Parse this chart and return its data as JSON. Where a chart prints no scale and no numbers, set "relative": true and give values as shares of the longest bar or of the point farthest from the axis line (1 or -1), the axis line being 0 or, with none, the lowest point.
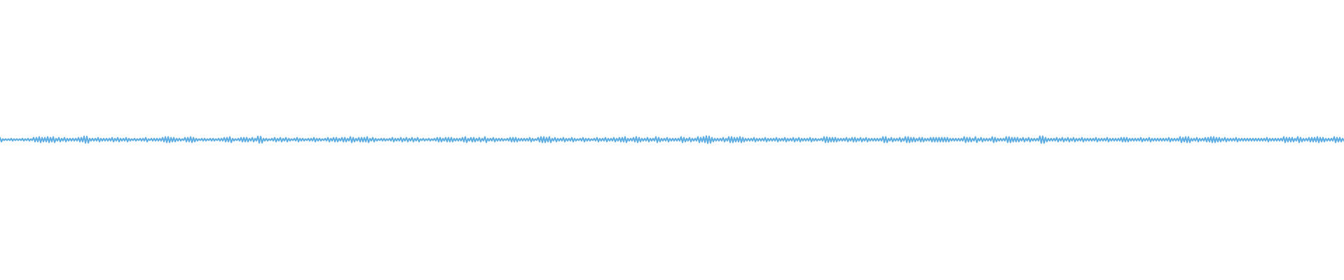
{
  "chart_data": {
    "type": "line",
    "relative": true,
    "color": "#5dade2",
    "categories": [
      null,
      null,
      null,
      null,
      null,
      null,
      null,
      null,
      null,
      null,
      null,
      null,
      null,
      null,
      null,
      null,
      null,
      null,
      null,
      null,
      null,
      null,
      null,
      null,
      null,
      null,
      null,
      null,
      null,
      null,
      null,
      null,
      null,
      null,
      null,
      null,
      null,
      null,
      null,
      null,
      null,
      null,
      null,
      null,
      null,
      null,
      null,
      null,
      null,
      null,
      null,
      null,
      null,
      null,
      null,
      null,
      null,
      null,
      null,
      null,
      null,
      null,
      null,
      null,
      null,
      null,
      null,
      null,
      null,
      null,
      null,
      null,
      null,
      null,
      null,
      null,
      null,
      null,
      null,
      null,
      null,
      null,
      null,
      null,
      null,
      null,
      null,
      null,
      null,
      null,
      null,
      null,
      null,
      null,
      null,
      null,
      null,
      null,
      null,
      null,
      null,
      null,
      null,
      null,
      null,
      null,
      null,
      null,
      null,
      null,
      null,
      null,
      null,
      null,
      null,
      null,
      null,
      null,
      null,
      null,
      null,
      null,
      null,
      null,
      null,
      null,
      null,
      null,
      null,
      null,
      null,
      null,
      null,
      null,
      null,
      null,
      null,
      null,
      null,
      null,
      null,
      null,
      null,
      null,
      null,
      null,
      null,
      null,
      null,
      null,
      null,
      null,
      null,
      null,
      null,
      null,
      null,
      null,
      null,
      null,
      null,
      null,
      null,
      null,
      null,
      null,
      null,
      null,
      null,
      null,
      null,
      null,
      null,
      null,
      null,
      null,
      null,
      null,
      null,
      null,
      null,
      null,
      null,
      null,
      null,
      null,
      null,
      null,
      null,
      null,
      null,
      null,
      null,
      null,
      null,
      null,
      null,
      null,
      null,
      null,
      null,
      null,
      null,
      null,
      null,
      null,
      null,
      null,
      null,
      null,
      null,
      null,
      null,
      null,
      null,
      null,
      null,
      null,
      null,
      null,
      null,
      null,
      null,
      null,
      null,
      null,
      null,
      null,
      null,
      null,
      null,
      null,
      null,
      null,
      null,
      null,
      null,
      null,
      null,
      null,
      null,
      null,
      null,
      null,
      null,
      null,
      null,
      null,
      null,
      null,
      null,
      null,
      null,
      null,
      null,
      null,
      null,
      null,
      null,
      null,
      null,
      null,
      null,
      null,
      null,
      null,
      null,
      null,
      null,
      null,
      null,
      null,
      null,
      null,
      null,
      null,
      null,
      null,
      null,
      null,
      null,
      null,
      null,
      null,
      null,
      null,
      null,
      null,
      null,
      null,
      null,
      null,
      null,
      null,
      null,
      null,
      null,
      null,
      null,
      null,
      null,
      null,
      null,
      null,
      null,
      null,
      null,
      null,
      null,
      null,
      null,
      null,
      null,
      null,
      null,
      null,
      null,
      null,
      null,
      null,
      null,
      null,
      null,
      null,
      null,
      null,
      null,
      null,
      null,
      null,
      null,
      null,
      null,
      null,
      null,
      null,
      null,
      null,
      null,
      null,
      null,
      null,
      null,
      null,
      null,
      null,
      null,
      null,
      null,
      null,
      null,
      null,
      null,
      null,
      null,
      null,
      null,
      null,
      null,
      null,
      null,
      null,
      null,
      null,
      null,
      null,
      null,
      null,
      null,
      null,
      null,
      null,
      null,
      null,
      null,
      null,
      null,
      null,
      null,
      null,
      null,
      null,
      null,
      null,
      null,
      null,
      null,
      null,
      null,
      null,
      null,
      null,
      null,
      null,
      null,
      null,
      null,
      null,
      null,
      null,
      null,
      null,
      null,
      null,
      null,
      null,
      null,
      null,
      null,
      null,
      null,
      null,
      null,
      null,
      null,
      null,
      null,
      null,
      null,
      null,
      null,
      null,
      null,
      null,
      null,
      null,
      null,
      null,
      null,
      null,
      null,
      null,
      null,
      null,
      null,
      null,
      null,
      null,
      null,
      null,
      null,
      null,
      null,
      null,
      null,
      null,
      null,
      null,
      null,
      null,
      null,
      null,
      null,
      null,
      null,
      null,
      null,
      null,
      null,
      null,
      null,
      null,
      null,
      null,
      null,
      null,
      null,
      null,
      null,
      null,
      null,
      null,
      null,
      null,
      null,
      null,
      null,
      null,
      null,
      null,
      null,
      null,
      null,
      null,
      null,
      null,
      null,
      null,
      null,
      null,
      null,
      null,
      null,
      null,
      null,
      null,
      null,
      null,
      null,
      null,
      null,
      null,
      null,
      null,
      null,
      null,
      null,
      null,
      null,
      null,
      null,
      null,
      null,
      null,
      null,
      null,
      null,
      null,
      null,
      null,
      null,
      null,
      null,
      null,
      null,
      null,
      null,
      null,
      null,
      null,
      null,
      null,
      null,
      null,
      null,
      null,
      null,
      null,
      null,
      null,
      null,
      null,
      null,
      null,
      null,
      null,
      null,
      null,
      null,
      null,
      null,
      null,
      null,
      null,
      null,
      null,
      null,
      null,
      null,
      null,
      null,
      null,
      null,
      null,
      null,
      null,
      null,
      null,
      null,
      null,
      null,
      null,
      null,
      null,
      null,
      null,
      null,
      null,
      null,
      null,
      null,
      null,
      null,
      null,
      null,
      null,
      null,
      null,
      null,
      null,
      null,
      null,
      null,
      null,
      null,
      null,
      null,
      null,
      null,
      null,
      null,
      null,
      null,
      null,
      null,
      null,
      null,
      null,
      null,
      null,
      null,
      null,
      null,
      null,
      null,
      null,
      null,
      null,
      null,
      null,
      null,
      null,
      null,
      null,
      null,
      null,
      null,
      null,
      null,
      null,
      null,
      null,
      null,
      null,
      null,
      null,
      null,
      null,
      null,
      null,
      null,
      null,
      null,
      null,
      null,
      null,
      null,
      null,
      null,
      null,
      null,
      null,
      null,
      null,
      null,
      null,
      null,
      null,
      null,
      null,
      null,
      null,
      null,
      null,
      null,
      null,
      null,
      null,
      null,
      null,
      null,
      null,
      null,
      null,
      null,
      null,
      null,
      null,
      null,
      null,
      null,
      null,
      null,
      null,
      null,
      null,
      null,
      null,
      null,
      null,
      null,
      null,
      null,
      null,
      null,
      null,
      null,
      null,
      null,
      null,
      null,
      null,
      null,
      null,
      null,
      null,
      null,
      null,
      null,
      null,
      null,
      null,
      null,
      null,
      null,
      null,
      null,
      null,
      null,
      null,
      null,
      null,
      null,
      null,
      null,
      null,
      null,
      null,
      null,
      null,
      null,
      null,
      null,
      null,
      null,
      null,
      null,
      null,
      null,
      null,
      null,
      null,
      null,
      null,
      null,
      null,
      null,
      null,
      null,
      null,
      null,
      null,
      null,
      null,
      null,
      null,
      null,
      null,
      null,
      null,
      null,
      null,
      null,
      null,
      null,
      null,
      null,
      null,
      null,
      null,
      null,
      null,
      null,
      null,
      null,
      null,
      null,
      null,
      null,
      null,
      null,
      null,
      null,
      null,
      null,
      null,
      null,
      null,
      null,
      null,
      null,
      null,
      null,
      null,
      null,
      null,
      null,
      null,
      null,
      null,
      null,
      null,
      null,
      null,
      null,
      null,
      null,
      null,
      null,
      null,
      null,
      null,
      null,
      null,
      null,
      null,
      null,
      null,
      null,
      null,
      null,
      null,
      null,
      null,
      null,
      null,
      null,
      null,
      null,
      null,
      null,
      null,
      null,
      null,
      null,
      null,
      null,
      null,
      null,
      null,
      null,
      null,
      null,
      null,
      null,
      null,
      null,
      null,
      null,
      null,
      null,
      null,
      null,
      null,
      null,
      null,
      null,
      null,
      null,
      null,
      null,
      null,
      null,
      null,
      null,
      null,
      null,
      null,
      null,
      null,
      null,
      null,
      null,
      null,
      null,
      null,
      null,
      null,
      null,
      null,
      null,
      null,
      null,
      null,
      null,
      null,
      null,
      null,
      null,
      null,
      null,
      null,
      null,
      null,
      null,
      null,
      null,
      null,
      null,
      null,
      null,
      null,
      null,
      null,
      null,
      null,
      null,
      null,
      null,
      null,
      null,
      null,
      null,
      null,
      null,
      null,
      null,
      null,
      null,
      null,
      null,
      null,
      null,
      null,
      null,
      null,
      null,
      null,
      null,
      null,
      null,
      null,
      null,
      null,
      null,
      null,
      null,
      null,
      null,
      null,
      null,
      null,
      null,
      null,
      null,
      null,
      null,
      null,
      null,
      null,
      null,
      null,
      null,
      null,
      null,
      null,
      null,
      null,
      null,
      null
    ],
    "values": [
      0.78,
      0.22,
      0.6,
      0.4,
      0.6,
      0.4,
      0.6,
      0.4,
      0.66,
      0.34,
      0.6,
      0.4,
      0.6,
      0.4,
      0.6,
      0.4,
      0.66,
      0.34,
      0.6,
      0.4,
      0.66,
      0.34,
      0.6,
      0.4,
      0.78,
      0.22,
      0.78,
      0.22,
      0.88,
      0.12,
      0.78,
      0.22,
      0.78,
      0.22,
      0.88,
      0.12,
      0.78,
      0.22,
      0.88,
      0.12,
      0.66,
      0.34,
      0.78,
      0.22,
      0.66,
      0.34,
      0.78,
      0.22,
      0.66,
      0.34,
      0.66,
      0.34,
      0.66,
      0.34,
      0.66,
      0.34,
      0.78,
      0.22,
      0.78,
      0.22,
      0.96,
      0.04,
      0.94,
      0.06,
      0.66,
      0.34,
      0.66,
      0.34,
      0.66,
      0.34,
      0.78,
      0.22,
      0.66,
      0.34,
      0.66,
      0.34,
      0.66,
      0.34,
      0.66,
      0.34,
      0.78,
      0.22,
      0.66,
      0.34,
      0.78,
      0.22,
      0.66,
      0.34,
      0.66,
      0.34,
      0.78,
      0.22,
      0.66,
      0.34,
      0.6,
      0.4,
      0.66,
      0.34,
      0.6,
      0.4,
      0.66,
      0.34,
      0.66,
      0.34,
      0.78,
      0.22,
      0.6,
      0.4,
      0.66,
      0.34,
      0.66,
      0.34,
      0.66,
      0.34,
      0.66,
      0.34,
      0.78,
      0.22,
      0.88,
      0.12,
      0.88,
      0.12,
      0.78,
      0.22,
      0.78,
      0.22,
      0.66,
      0.34,
      0.66,
      0.34,
      0.6,
      0.4,
      0.78,
      0.22,
      0.78,
      0.22,
      0.88,
      0.12,
      0.78,
      0.22,
      0.66,
      0.34,
      0.6,
      0.4,
      0.66,
      0.34,
      0.66,
      0.34,
      0.6,
      0.4,
      0.66,
      0.34,
      0.66,
      0.34,
      0.6,
      0.4,
      0.66,
      0.34,
      0.66,
      0.34,
      0.78,
      0.22,
      0.78,
      0.22,
      0.88,
      0.12,
      0.66,
      0.34,
      0.6,
      0.4,
      0.66,
      0.34,
      0.78,
      0.22,
      0.78,
      0.22,
      0.78,
      0.22,
      0.66,
      0.34,
      0.78,
      0.22,
      0.66,
      0.34,
      0.96,
      0.04,
      0.94,
      0.06,
      0.66,
      0.34,
      0.66,
      0.34,
      0.6,
      0.4,
      0.66,
      0.34,
      0.78,
      0.22,
      0.66,
      0.34,
      0.78,
      0.22,
      0.66,
      0.34,
      0.78,
      0.22,
      0.66,
      0.34,
      0.6,
      0.4,
      0.66,
      0.34,
      0.78,
      0.22,
      0.66,
      0.34,
      0.66,
      0.34,
      0.6,
      0.4,
      0.66,
      0.34,
      0.66,
      0.34,
      0.78,
      0.22,
      0.66,
      0.34,
      0.66,
      0.34,
      0.6,
      0.4,
      0.66,
      0.34,
      0.78,
      0.22,
      0.66,
      0.34,
      0.78,
      0.22,
      0.78,
      0.22,
      0.66,
      0.34,
      0.78,
      0.22,
      0.78,
      0.22,
      0.66,
      0.34,
      0.88,
      0.12,
      0.78,
      0.22,
      0.66,
      0.34,
      0.78,
      0.22,
      0.78,
      0.22,
      0.78,
      0.22,
      0.88,
      0.12,
      0.66,
      0.34,
      0.78,
      0.22,
      0.66,
      0.34,
      0.6,
      0.4,
      0.66,
      0.34,
      0.66,
      0.34,
      0.6,
      0.4,
      0.66,
      0.34,
      0.78,
      0.22,
      0.66,
      0.34,
      0.66,
      0.34,
      0.78,
      0.22,
      0.66,
      0.34,
      0.78,
      0.22,
      0.66,
      0.34,
      0.78,
      0.22,
      0.66,
      0.34,
      0.78,
      0.22,
      0.6,
      0.4,
      0.66,
      0.34,
      0.6,
      0.4,
      0.66,
      0.34,
      0.6,
      0.4,
      0.66,
      0.34,
      0.78,
      0.22,
      0.78,
      0.22,
      0.66,
      0.34,
      0.78,
      0.22,
      0.78,
      0.22,
      0.78,
      0.22,
      0.66,
      0.34,
      0.66,
      0.34,
      0.66,
      0.34,
      0.78,
      0.22,
      0.88,
      0.12,
      0.66,
      0.34,
      0.78,
      0.22,
      0.78,
      0.22,
      0.66,
      0.34,
      0.78,
      0.22,
      0.66,
      0.34,
      0.88,
      0.12,
      0.66,
      0.34,
      0.66,
      0.34,
      0.78,
      0.22,
      0.66,
      0.34,
      0.66,
      0.34,
      0.66,
      0.34,
      0.6,
      0.4,
      0.66,
      0.34,
      0.78,
      0.22,
      0.78,
      0.22,
      0.78,
      0.22,
      0.66,
      0.34,
      0.66,
      0.34,
      0.66,
      0.34,
      0.66,
      0.34,
      0.78,
      0.22,
      0.66,
      0.34,
      0.6,
      0.4,
      0.78,
      0.22,
      0.88,
      0.12,
      0.88,
      0.12,
      0.78,
      0.22,
      0.88,
      0.12,
      0.66,
      0.34,
      0.78,
      0.22,
      0.66,
      0.34,
      0.66,
      0.34,
      0.78,
      0.22,
      0.66,
      0.34,
      0.66,
      0.34,
      0.78,
      0.22,
      0.66,
      0.34,
      0.6,
      0.4,
      0.66,
      0.34,
      0.78,
      0.22,
      0.66,
      0.34,
      0.66,
      0.34,
      0.6,
      0.4,
      0.66,
      0.34,
      0.78,
      0.22,
      0.66,
      0.34,
      0.66,
      0.34,
      0.78,
      0.22,
      0.66,
      0.34,
      0.66,
      0.34,
      0.78,
      0.22,
      0.66,
      0.34,
      0.78,
      0.22,
      0.78,
      0.22,
      0.88,
      0.12,
      0.66,
      0.34,
      0.66,
      0.34,
      0.78,
      0.22,
      0.88,
      0.12,
      0.78,
      0.22,
      0.66,
      0.34,
      0.66,
      0.34,
      0.78,
      0.22,
      0.66,
      0.34,
      0.66,
      0.34,
      0.88,
      0.12,
      0.78,
      0.22,
      0.66,
      0.34,
      0.66,
      0.34,
      0.78,
      0.22,
      0.66,
      0.34,
      0.66,
      0.34,
      0.66,
      0.34,
      0.66,
      0.34,
      0.88,
      0.12,
      0.78,
      0.22,
      0.66,
      0.34,
      0.78,
      0.22,
      0.66,
      0.34,
      0.66,
      0.34,
      0.88,
      0.12,
      0.78,
      0.22,
      0.88,
      0.12,
      1,
      0,
      0.96,
      0.04,
      0.78,
      0.22,
      0.66,
      0.34,
      0.66,
      0.34,
      0.66,
      0.34,
      0.78,
      0.22,
      0.66,
      0.34,
      0.88,
      0.12,
      0.88,
      0.12,
      0.78,
      0.22,
      0.78,
      0.22,
      0.88,
      0.12,
      0.78,
      0.22,
      0.66,
      0.34,
      0.66,
      0.34,
      0.66,
      0.34,
      0.78,
      0.22,
      0.66,
      0.34,
      0.66,
      0.34,
      0.66,
      0.34,
      0.78,
      0.22,
      0.66,
      0.34,
      0.66,
      0.34,
      0.66,
      0.34,
      0.78,
      0.22,
      0.66,
      0.34,
      0.66,
      0.34,
      0.78,
      0.22,
      0.66,
      0.34,
      0.66,
      0.34,
      0.78,
      0.22,
      0.66,
      0.34,
      0.78,
      0.22,
      0.66,
      0.34,
      0.66,
      0.34,
      0.66,
      0.34,
      0.78,
      0.22,
      0.66,
      0.34,
      0.66,
      0.34,
      0.6,
      0.4,
      0.66,
      0.34,
      0.88,
      0.12,
      0.85,
      0.15,
      0.78,
      0.22,
      0.78,
      0.22,
      0.78,
      0.22,
      0.66,
      0.34,
      0.66,
      0.34,
      0.66,
      0.34,
      0.78,
      0.22,
      0.66,
      0.34,
      0.78,
      0.22,
      0.78,
      0.22,
      0.66,
      0.34,
      0.78,
      0.22,
      0.66,
      0.34,
      0.78,
      0.22,
      0.66,
      0.34,
      0.66,
      0.34,
      0.66,
      0.34,
      0.66,
      0.34,
      0.66,
      0.34,
      0.88,
      0.12,
      0.88,
      0.12,
      0.66,
      0.34,
      0.78,
      0.22,
      0.66,
      0.34,
      0.66,
      0.34,
      0.78,
      0.22,
      0.66,
      0.34,
      0.88,
      0.12,
      0.88,
      0.12,
      0.78,
      0.22,
      0.78,
      0.22,
      0.66,
      0.34,
      0.78,
      0.22,
      0.78,
      0.22,
      0.66,
      0.34,
      0.66,
      0.34,
      0.78,
      0.22,
      0.78,
      0.22,
      0.78,
      0.22,
      0.78,
      0.22,
      0.78,
      0.22,
      0.78,
      0.22,
      0.78,
      0.22,
      0.66,
      0.34,
      0.66,
      0.34,
      0.66,
      0.34,
      0.66,
      0.34,
      0.66,
      0.34,
      0.88,
      0.12,
      0.78,
      0.22,
      0.78,
      0.22,
      0.66,
      0.34,
      0.88,
      0.12,
      0.66,
      0.34,
      0.78,
      0.22,
      0.66,
      0.34,
      0.66,
      0.34,
      0.66,
      0.34,
      0.88,
      0.12,
      0.78,
      0.22,
      0.66,
      0.34,
      0.66,
      0.34,
      0.66,
      0.34,
      0.88,
      0.12,
      0.88,
      0.12,
      0.78,
      0.22,
      0.78,
      0.22,
      0.78,
      0.22,
      0.66,
      0.34,
      0.78,
      0.22,
      0.66,
      0.34,
      0.78,
      0.22,
      0.66,
      0.34,
      0.66,
      0.34,
      0.66,
      0.34,
      0.97,
      0.03,
      0.97,
      0.03,
      0.78,
      0.22,
      0.66,
      0.34,
      0.66,
      0.34,
      0.66,
      0.34,
      0.78,
      0.22,
      0.66,
      0.34,
      0.78,
      0.22,
      0.66,
      0.34,
      0.78,
      0.22,
      0.66,
      0.34,
      0.78,
      0.22,
      0.66,
      0.34,
      0.66,
      0.34,
      0.78,
      0.22,
      0.66,
      0.34,
      0.66,
      0.34,
      0.66,
      0.34,
      0.66,
      0.34,
      0.78,
      0.22,
      0.66,
      0.34,
      0.66,
      0.34,
      0.66,
      0.34,
      0.78,
      0.22,
      0.66,
      0.34,
      0.66,
      0.34,
      0.66,
      0.34,
      0.66,
      0.34,
      0.78,
      0.22,
      0.78,
      0.22,
      0.78,
      0.22,
      0.66,
      0.34,
      0.66,
      0.34,
      0.66,
      0.34,
      0.66,
      0.34,
      0.78,
      0.22,
      0.66,
      0.34,
      0.66,
      0.34,
      0.78,
      0.22,
      0.66,
      0.34,
      0.66,
      0.34,
      0.66,
      0.34,
      0.66,
      0.34,
      0.66,
      0.34,
      0.66,
      0.34,
      0.78,
      0.22,
      0.66,
      0.34,
      0.66,
      0.34,
      0.66,
      0.34,
      0.88,
      0.12,
      0.78,
      0.22,
      0.88,
      0.12,
      0.88,
      0.12,
      0.66,
      0.34,
      0.66,
      0.34,
      0.78,
      0.22,
      0.66,
      0.34,
      0.66,
      0.34,
      0.78,
      0.22,
      0.78,
      0.22,
      0.88,
      0.12,
      0.88,
      0.12,
      0.78,
      0.22,
      0.78,
      0.22,
      0.66,
      0.34,
      0.78,
      0.22,
      0.66,
      0.34,
      0.66,
      0.34,
      0.66,
      0.34,
      0.78,
      0.22,
      0.66,
      0.34,
      0.66,
      0.34,
      0.66,
      0.34,
      0.66,
      0.34,
      0.66,
      0.34,
      0.66,
      0.34,
      0.66,
      0.34,
      0.66,
      0.34,
      0.66,
      0.34,
      0.66,
      0.34,
      0.78,
      0.22,
      0.66,
      0.34,
      0.66,
      0.34,
      0.66,
      0.34,
      0.66,
      0.34,
      0.66,
      0.34,
      0.88,
      0.12,
      0.78,
      0.22,
      0.78,
      0.22,
      0.78,
      0.22,
      0.66,
      0.34,
      0.88,
      0.12,
      0.78,
      0.22,
      0.66,
      0.34,
      0.66,
      0.34,
      0.78,
      0.22,
      0.78,
      0.22,
      0.78,
      0.22,
      0.88,
      0.12,
      0.78,
      0.22,
      0.78,
      0.22,
      0.66,
      0.34,
      0.66,
      0.34,
      0.66,
      0.34,
      0.88,
      0.12,
      0.78,
      0.22,
      0.78,
      0.22,
      0.66,
      0.34
    ]
  }
}
